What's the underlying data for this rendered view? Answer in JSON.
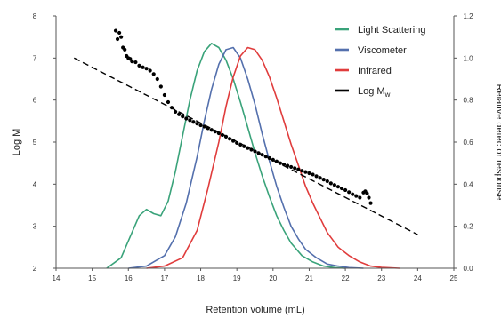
{
  "chart_data": {
    "type": "line",
    "title": "",
    "xlabel": "Retention volume (mL)",
    "ylabel": "Log M",
    "y2label": "Relative detector response",
    "xlim": [
      14,
      25
    ],
    "ylim": [
      2,
      8
    ],
    "y2lim": [
      0,
      1.2
    ],
    "x_ticks": [
      "14",
      "15",
      "16",
      "17",
      "18",
      "19",
      "20",
      "21",
      "22",
      "23",
      "24",
      "25"
    ],
    "y_ticks": [
      "2",
      "3",
      "4",
      "5",
      "6",
      "7",
      "8"
    ],
    "y2_ticks": [
      "0.0",
      "0.2",
      "0.4",
      "0.6",
      "0.8",
      "1.0",
      "1.2"
    ],
    "grid": false,
    "legend_position": "top-right",
    "series": [
      {
        "name": "Light Scattering",
        "axis": "right",
        "color": "#3aa37a",
        "x": [
          15.4,
          15.8,
          16.1,
          16.3,
          16.5,
          16.7,
          16.9,
          17.1,
          17.3,
          17.5,
          17.7,
          17.9,
          18.1,
          18.3,
          18.5,
          18.7,
          18.9,
          19.1,
          19.3,
          19.5,
          19.7,
          19.9,
          20.1,
          20.3,
          20.5,
          20.8,
          21.1,
          21.4,
          21.7,
          22.0
        ],
        "values": [
          0.0,
          0.05,
          0.17,
          0.25,
          0.28,
          0.26,
          0.25,
          0.32,
          0.46,
          0.63,
          0.8,
          0.94,
          1.03,
          1.07,
          1.05,
          0.99,
          0.9,
          0.79,
          0.67,
          0.55,
          0.44,
          0.34,
          0.25,
          0.18,
          0.12,
          0.06,
          0.03,
          0.01,
          0.003,
          0.0
        ]
      },
      {
        "name": "Viscometer",
        "axis": "right",
        "color": "#5470ad",
        "x": [
          16.0,
          16.5,
          17.0,
          17.3,
          17.6,
          17.9,
          18.1,
          18.3,
          18.5,
          18.7,
          18.9,
          19.1,
          19.3,
          19.5,
          19.7,
          19.9,
          20.1,
          20.3,
          20.5,
          20.7,
          20.9,
          21.2,
          21.5,
          21.8,
          22.1,
          22.5
        ],
        "values": [
          0.0,
          0.01,
          0.06,
          0.15,
          0.31,
          0.53,
          0.7,
          0.85,
          0.97,
          1.04,
          1.05,
          1.0,
          0.9,
          0.78,
          0.64,
          0.51,
          0.39,
          0.29,
          0.2,
          0.14,
          0.09,
          0.05,
          0.02,
          0.01,
          0.003,
          0.0
        ]
      },
      {
        "name": "Infrared",
        "axis": "right",
        "color": "#e03c3c",
        "x": [
          16.5,
          17.0,
          17.5,
          17.9,
          18.2,
          18.5,
          18.7,
          18.9,
          19.1,
          19.3,
          19.5,
          19.7,
          19.9,
          20.1,
          20.3,
          20.5,
          20.7,
          20.9,
          21.1,
          21.3,
          21.5,
          21.8,
          22.1,
          22.4,
          22.7,
          23.0,
          23.5
        ],
        "values": [
          0.0,
          0.01,
          0.05,
          0.18,
          0.38,
          0.6,
          0.77,
          0.91,
          1.01,
          1.05,
          1.04,
          0.99,
          0.91,
          0.81,
          0.7,
          0.59,
          0.49,
          0.39,
          0.31,
          0.24,
          0.17,
          0.1,
          0.06,
          0.03,
          0.01,
          0.004,
          0.0
        ]
      },
      {
        "name": "Log Mw",
        "axis": "left",
        "color": "#000000",
        "style": "points",
        "x": [
          15.65,
          15.7,
          15.75,
          15.8,
          15.85,
          15.9,
          15.95,
          16.0,
          16.05,
          16.1,
          16.2,
          16.3,
          16.4,
          16.5,
          16.6,
          16.7,
          16.8,
          16.9,
          17.0,
          17.1,
          17.2,
          17.3,
          17.4,
          17.5,
          17.6,
          17.7,
          17.8,
          17.9,
          18.0,
          18.1,
          18.2,
          18.3,
          18.4,
          18.5,
          18.6,
          18.7,
          18.8,
          18.9,
          19.0,
          19.1,
          19.2,
          19.3,
          19.4,
          19.5,
          19.6,
          19.7,
          19.8,
          19.9,
          20.0,
          20.1,
          20.2,
          20.3,
          20.4,
          20.5,
          20.6,
          20.7,
          20.8,
          20.9,
          21.0,
          21.1,
          21.2,
          21.3,
          21.4,
          21.5,
          21.6,
          21.7,
          21.8,
          21.9,
          22.0,
          22.1,
          22.2,
          22.3,
          22.4,
          22.5,
          22.55,
          22.6,
          22.65,
          22.7
        ],
        "values": [
          7.65,
          7.45,
          7.6,
          7.5,
          7.25,
          7.2,
          7.05,
          7.0,
          6.98,
          6.92,
          6.9,
          6.82,
          6.78,
          6.75,
          6.7,
          6.62,
          6.5,
          6.32,
          6.12,
          5.95,
          5.82,
          5.72,
          5.66,
          5.61,
          5.56,
          5.52,
          5.48,
          5.44,
          5.4,
          5.37,
          5.33,
          5.29,
          5.25,
          5.21,
          5.17,
          5.13,
          5.08,
          5.03,
          4.98,
          4.94,
          4.9,
          4.86,
          4.82,
          4.78,
          4.74,
          4.7,
          4.66,
          4.62,
          4.58,
          4.54,
          4.5,
          4.47,
          4.44,
          4.41,
          4.38,
          4.35,
          4.32,
          4.29,
          4.26,
          4.23,
          4.19,
          4.15,
          4.11,
          4.07,
          4.02,
          3.98,
          3.94,
          3.9,
          3.86,
          3.81,
          3.76,
          3.72,
          3.68,
          3.8,
          3.83,
          3.78,
          3.68,
          3.55
        ]
      },
      {
        "name": "Linear fit",
        "axis": "left",
        "color": "#000000",
        "style": "dashed",
        "x": [
          14.5,
          24.0
        ],
        "values": [
          7.0,
          2.8
        ]
      }
    ],
    "legend": [
      {
        "label": "Light Scattering",
        "color": "#3aa37a"
      },
      {
        "label": "Viscometer",
        "color": "#5470ad"
      },
      {
        "label": "Infrared",
        "color": "#e03c3c"
      },
      {
        "label": "Log M",
        "sub": "w",
        "color": "#000000"
      }
    ]
  }
}
